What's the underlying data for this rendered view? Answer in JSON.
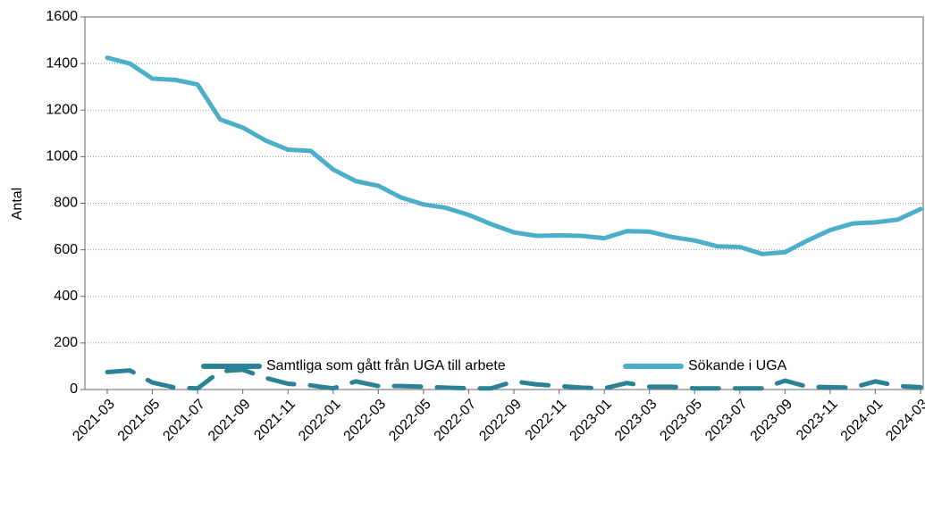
{
  "chart_data": {
    "type": "line",
    "y_label": "Antal",
    "categories": [
      "2021-03",
      null,
      "2021-05",
      null,
      "2021-07",
      null,
      "2021-09",
      null,
      "2021-11",
      null,
      "2022-01",
      null,
      "2022-03",
      null,
      "2022-05",
      null,
      "2022-07",
      null,
      "2022-09",
      null,
      "2022-11",
      null,
      "2023-01",
      null,
      "2023-03",
      null,
      "2023-05",
      null,
      "2023-07",
      null,
      "2023-09",
      null,
      "2023-11",
      null,
      "2024-01",
      null,
      "2024-03"
    ],
    "series": [
      {
        "name": "Samtliga som gått från UGA till arbete",
        "color": "#2b8294",
        "dashed": true,
        "values": [
          75,
          82,
          30,
          8,
          5,
          78,
          85,
          50,
          25,
          18,
          5,
          35,
          15,
          15,
          12,
          8,
          5,
          5,
          35,
          22,
          15,
          8,
          5,
          28,
          12,
          12,
          5,
          5,
          5,
          5,
          38,
          12,
          10,
          8,
          35,
          15,
          10
        ]
      },
      {
        "name": "Sökande i UGA",
        "color": "#4bafc9",
        "dashed": false,
        "values": [
          1425,
          1400,
          1335,
          1330,
          1310,
          1160,
          1125,
          1070,
          1030,
          1025,
          945,
          895,
          875,
          825,
          795,
          780,
          750,
          710,
          675,
          660,
          662,
          660,
          650,
          680,
          678,
          655,
          640,
          615,
          612,
          582,
          590,
          640,
          685,
          713,
          718,
          730,
          775
        ]
      }
    ],
    "ylim": [
      0,
      1600
    ],
    "yticks": [
      0,
      200,
      400,
      600,
      800,
      1000,
      1200,
      1400,
      1600
    ],
    "grid": true,
    "legend": "bottom"
  }
}
